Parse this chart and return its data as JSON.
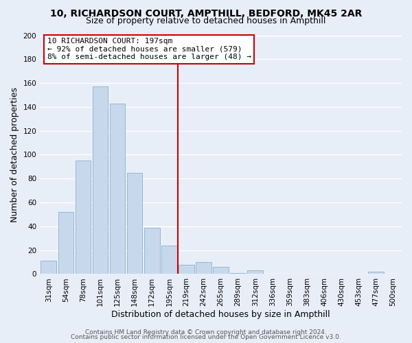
{
  "title": "10, RICHARDSON COURT, AMPTHILL, BEDFORD, MK45 2AR",
  "subtitle": "Size of property relative to detached houses in Ampthill",
  "xlabel": "Distribution of detached houses by size in Ampthill",
  "ylabel": "Number of detached properties",
  "bar_labels": [
    "31sqm",
    "54sqm",
    "78sqm",
    "101sqm",
    "125sqm",
    "148sqm",
    "172sqm",
    "195sqm",
    "219sqm",
    "242sqm",
    "265sqm",
    "289sqm",
    "312sqm",
    "336sqm",
    "359sqm",
    "383sqm",
    "406sqm",
    "430sqm",
    "453sqm",
    "477sqm",
    "500sqm"
  ],
  "bar_values": [
    11,
    52,
    95,
    157,
    143,
    85,
    39,
    24,
    8,
    10,
    6,
    1,
    3,
    0,
    0,
    0,
    0,
    0,
    0,
    2,
    0
  ],
  "bar_color": "#c8d8ec",
  "bar_edge_color": "#8ab0cc",
  "vline_color": "#cc0000",
  "annotation_title": "10 RICHARDSON COURT: 197sqm",
  "annotation_line1": "← 92% of detached houses are smaller (579)",
  "annotation_line2": "8% of semi-detached houses are larger (48) →",
  "annotation_box_color": "#ffffff",
  "annotation_box_edge": "#cc0000",
  "ylim": [
    0,
    200
  ],
  "yticks": [
    0,
    20,
    40,
    60,
    80,
    100,
    120,
    140,
    160,
    180,
    200
  ],
  "footer1": "Contains HM Land Registry data © Crown copyright and database right 2024.",
  "footer2": "Contains public sector information licensed under the Open Government Licence v3.0.",
  "background_color": "#e8eef8",
  "grid_color": "#ffffff",
  "title_fontsize": 10,
  "subtitle_fontsize": 9,
  "axis_label_fontsize": 9,
  "tick_fontsize": 7.5,
  "footer_fontsize": 6.5,
  "annotation_fontsize": 8
}
